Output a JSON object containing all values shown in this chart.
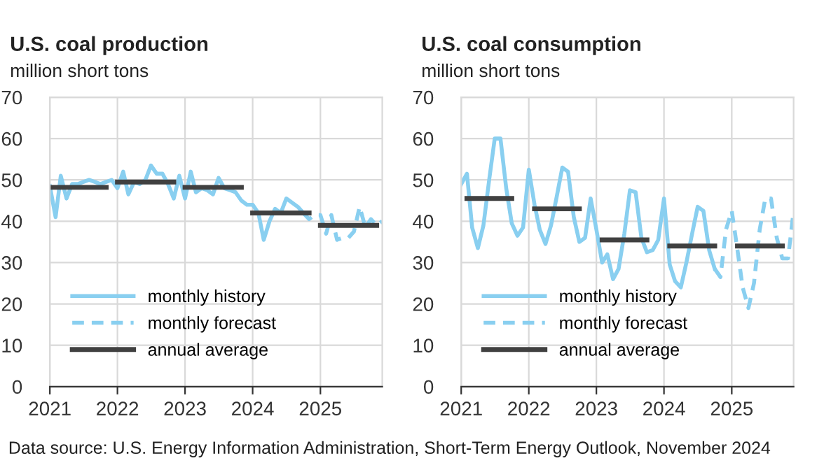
{
  "chart_data": [
    {
      "type": "line",
      "title": "U.S. coal production",
      "subtitle": "million short tons",
      "xlim": [
        "2021",
        "2025-12"
      ],
      "xticks": [
        "2021",
        "2022",
        "2023",
        "2024",
        "2025"
      ],
      "ylim": [
        0,
        70
      ],
      "yticks": [
        0,
        10,
        20,
        30,
        40,
        50,
        60,
        70
      ],
      "grid": true,
      "legend": "bottom left",
      "annotations": [
        "Data source: U.S. Energy Information Administration, Short-Term Energy Outlook, November 2024"
      ],
      "series": [
        {
          "name": "monthly history",
          "color": "#89cff0",
          "line_style": "solid",
          "x": [
            "2021-01",
            "2021-02",
            "2021-03",
            "2021-04",
            "2021-05",
            "2021-06",
            "2021-07",
            "2021-08",
            "2021-09",
            "2021-10",
            "2021-11",
            "2021-12",
            "2022-01",
            "2022-02",
            "2022-03",
            "2022-04",
            "2022-05",
            "2022-06",
            "2022-07",
            "2022-08",
            "2022-09",
            "2022-10",
            "2022-11",
            "2022-12",
            "2023-01",
            "2023-02",
            "2023-03",
            "2023-04",
            "2023-05",
            "2023-06",
            "2023-07",
            "2023-08",
            "2023-09",
            "2023-10",
            "2023-11",
            "2023-12",
            "2024-01",
            "2024-02",
            "2024-03",
            "2024-04",
            "2024-05",
            "2024-06",
            "2024-07",
            "2024-08",
            "2024-09",
            "2024-10"
          ],
          "values": [
            48.5,
            41,
            51,
            45.5,
            49,
            49,
            49.5,
            50,
            49.5,
            49,
            49.5,
            50,
            48,
            52,
            46.5,
            49.5,
            49,
            50,
            53.5,
            51.5,
            51.5,
            49,
            45.5,
            51,
            45.5,
            52,
            47,
            48,
            47.5,
            46.5,
            50.5,
            48,
            47.5,
            47,
            45,
            44,
            44,
            42,
            35.5,
            40,
            43,
            42,
            45.5,
            44.5,
            43.5,
            42
          ]
        },
        {
          "name": "monthly forecast",
          "color": "#89cff0",
          "line_style": "dashed",
          "x": [
            "2024-10",
            "2024-11",
            "2024-12",
            "2025-01",
            "2025-02",
            "2025-03",
            "2025-04",
            "2025-05",
            "2025-06",
            "2025-07",
            "2025-08",
            "2025-09",
            "2025-10",
            "2025-11",
            "2025-12"
          ],
          "values": [
            42,
            40.5,
            41.5,
            41.5,
            37,
            41.5,
            35.5,
            36,
            36,
            37.5,
            43.5,
            38.5,
            40.5,
            39,
            40
          ]
        },
        {
          "name": "annual average",
          "color": "#404040",
          "line_style": "solid",
          "x": [
            "2021-01",
            "2021-11",
            "2021-12",
            "2022-01",
            "2022-11",
            "2022-12",
            "2023-01",
            "2023-11",
            "2023-12",
            "2024-01",
            "2024-11",
            "2024-12",
            "2025-01",
            "2025-11"
          ],
          "values": [
            48.2,
            48.2,
            null,
            49.5,
            49.5,
            null,
            48.2,
            48.2,
            null,
            42,
            42,
            null,
            39,
            39
          ]
        }
      ]
    },
    {
      "type": "line",
      "title": "U.S. coal consumption",
      "subtitle": "million short tons",
      "xlim": [
        "2021",
        "2025-12"
      ],
      "xticks": [
        "2021",
        "2022",
        "2023",
        "2024",
        "2025"
      ],
      "ylim": [
        0,
        70
      ],
      "yticks": [
        0,
        10,
        20,
        30,
        40,
        50,
        60,
        70
      ],
      "grid": true,
      "legend": "bottom left",
      "series": [
        {
          "name": "monthly history",
          "color": "#89cff0",
          "line_style": "solid",
          "x": [
            "2021-01",
            "2021-02",
            "2021-03",
            "2021-04",
            "2021-05",
            "2021-06",
            "2021-07",
            "2021-08",
            "2021-09",
            "2021-10",
            "2021-11",
            "2021-12",
            "2022-01",
            "2022-02",
            "2022-03",
            "2022-04",
            "2022-05",
            "2022-06",
            "2022-07",
            "2022-08",
            "2022-09",
            "2022-10",
            "2022-11",
            "2022-12",
            "2023-01",
            "2023-02",
            "2023-03",
            "2023-04",
            "2023-05",
            "2023-06",
            "2023-07",
            "2023-08",
            "2023-09",
            "2023-10",
            "2023-11",
            "2023-12",
            "2024-01",
            "2024-02",
            "2024-03",
            "2024-04",
            "2024-05",
            "2024-06",
            "2024-07",
            "2024-08",
            "2024-09",
            "2024-10"
          ],
          "values": [
            49,
            51.5,
            38.5,
            33.5,
            39,
            50,
            60,
            60,
            48,
            39.5,
            36.5,
            38.5,
            52.5,
            44,
            38,
            34.5,
            39,
            46,
            53,
            52,
            41,
            35,
            36,
            45.5,
            38,
            30,
            32,
            26,
            28.5,
            37,
            47.5,
            47,
            36,
            32.5,
            33,
            35.5,
            45.5,
            29.5,
            25.5,
            24,
            30,
            37,
            43.5,
            42.5,
            33,
            28.5
          ]
        },
        {
          "name": "monthly forecast",
          "color": "#89cff0",
          "line_style": "dashed",
          "x": [
            "2024-10",
            "2024-11",
            "2024-12",
            "2025-01",
            "2025-02",
            "2025-03",
            "2025-04",
            "2025-05",
            "2025-06",
            "2025-07",
            "2025-08",
            "2025-09",
            "2025-10",
            "2025-11",
            "2025-12"
          ],
          "values": [
            28.5,
            26.5,
            38,
            42.5,
            33,
            24,
            19,
            25,
            38,
            45.5,
            45.5,
            36,
            31,
            31,
            42.5
          ]
        },
        {
          "name": "annual average",
          "color": "#404040",
          "line_style": "solid",
          "x": [
            "2021-02",
            "2021-10",
            "2021-11",
            "2022-02",
            "2022-10",
            "2022-11",
            "2023-02",
            "2023-10",
            "2023-11",
            "2024-02",
            "2024-10",
            "2024-11",
            "2025-02",
            "2025-10"
          ],
          "values": [
            45.5,
            45.5,
            null,
            43,
            43,
            null,
            35.5,
            35.5,
            null,
            34,
            34,
            null,
            34,
            34
          ]
        }
      ]
    }
  ]
}
